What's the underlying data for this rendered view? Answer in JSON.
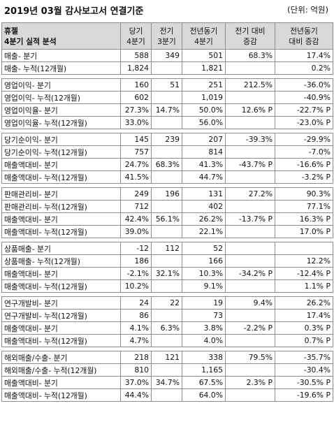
{
  "title": "2019년 03월 감사보고서 연결기준",
  "unit": "(단위: 억원)",
  "headers": [
    {
      "l1": "휴젤",
      "l2": "4분기 실적 분석"
    },
    {
      "l1": "당기",
      "l2": "4분기"
    },
    {
      "l1": "전기",
      "l2": "3분기"
    },
    {
      "l1": "전년동기",
      "l2": "4분기"
    },
    {
      "l1": "전기 대비",
      "l2": "증감"
    },
    {
      "l1": "전년동기",
      "l2": "대비 증감"
    }
  ],
  "groups": [
    [
      [
        "매출- 분기",
        "588",
        "349",
        "501",
        "68.3%",
        "17.4%"
      ],
      [
        "매출- 누적(12개월)",
        "1,824",
        "",
        "1,821",
        "",
        "0.2%"
      ]
    ],
    [
      [
        "영업이익- 분기",
        "160",
        "51",
        "251",
        "212.5%",
        "-36.0%"
      ],
      [
        "영업이익- 누적(12개월)",
        "602",
        "",
        "1,019",
        "",
        "-40.9%"
      ],
      [
        "영업이익율- 분기",
        "27.3%",
        "14.7%",
        "50.0%",
        "12.6% P",
        "-22.7% P"
      ],
      [
        "영업이익율- 누적(12개월)",
        "33.0%",
        "",
        "56.0%",
        "",
        "-23.0% P"
      ]
    ],
    [
      [
        "당기순이익- 분기",
        "145",
        "239",
        "207",
        "-39.3%",
        "-29.9%"
      ],
      [
        "당기순이익- 누적(12개월)",
        "757",
        "",
        "814",
        "",
        "-7.0%"
      ],
      [
        "매출액대비- 분기",
        "24.7%",
        "68.3%",
        "41.3%",
        "-43.7% P",
        "-16.6% P"
      ],
      [
        "매출액대비- 누적(12개월)",
        "41.5%",
        "",
        "44.7%",
        "",
        "-3.2% P"
      ]
    ],
    [
      [
        "판매관리비- 분기",
        "249",
        "196",
        "131",
        "27.2%",
        "90.3%"
      ],
      [
        "판매관리비- 누적(12개월)",
        "712",
        "",
        "402",
        "",
        "77.1%"
      ],
      [
        "매출액대비- 분기",
        "42.4%",
        "56.1%",
        "26.2%",
        "-13.7% P",
        "16.3% P"
      ],
      [
        "매출액대비- 누적(12개월)",
        "39.0%",
        "",
        "22.1%",
        "",
        "17.0% P"
      ]
    ],
    [
      [
        "상품매출- 분기",
        "-12",
        "112",
        "52",
        "",
        ""
      ],
      [
        "상품매출- 누적(12개월)",
        "186",
        "",
        "166",
        "",
        "12.2%"
      ],
      [
        "매출액대비- 분기",
        "-2.1%",
        "32.1%",
        "10.3%",
        "-34.2% P",
        "-12.4% P"
      ],
      [
        "매출액대비- 누적(12개월)",
        "10.2%",
        "",
        "9.1%",
        "",
        "1.1% P"
      ]
    ],
    [
      [
        "연구개발비- 분기",
        "24",
        "22",
        "19",
        "9.4%",
        "26.2%"
      ],
      [
        "연구개발비- 누적(12개월)",
        "86",
        "",
        "73",
        "",
        "17.4%"
      ],
      [
        "매출액대비- 분기",
        "4.1%",
        "6.3%",
        "3.8%",
        "-2.2% P",
        "0.3% P"
      ],
      [
        "매출액대비- 누적(12개월)",
        "4.7%",
        "",
        "4.0%",
        "",
        "0.7% P"
      ]
    ],
    [
      [
        "해외매출/수출- 분기",
        "218",
        "121",
        "338",
        "79.5%",
        "-35.7%"
      ],
      [
        "해외매출/수출- 누적(12개월)",
        "810",
        "",
        "1,165",
        "",
        "-30.4%"
      ],
      [
        "매출액대비- 분기",
        "37.0%",
        "34.7%",
        "67.5%",
        "2.3% P",
        "-30.5% P"
      ],
      [
        "매출액대비- 누적(12개월)",
        "44.4%",
        "",
        "64.0%",
        "",
        "-19.6% P"
      ]
    ]
  ]
}
